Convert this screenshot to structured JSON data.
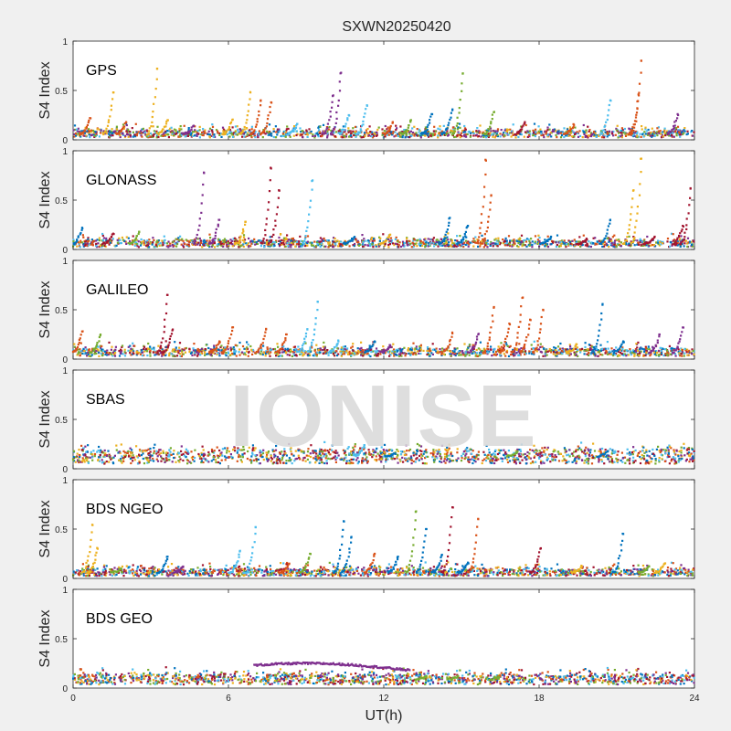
{
  "chart_data": {
    "type": "scatter",
    "title": "SXWN20250420",
    "xlabel": "UT(h)",
    "ylabel": "S4 Index",
    "xlim": [
      0,
      24
    ],
    "ylim": [
      0,
      1
    ],
    "xticks": [
      0,
      6,
      12,
      18,
      24
    ],
    "yticks": [
      0,
      0.5,
      1
    ],
    "ytick_labels": [
      "0",
      "0.5",
      "1"
    ],
    "xtick_labels": [
      "0",
      "6",
      "12",
      "18",
      "24"
    ],
    "grid": false,
    "watermark": "IONISE",
    "colors": [
      "#0072BD",
      "#D95319",
      "#EDB120",
      "#7E2F8E",
      "#77AC30",
      "#4DBEEE",
      "#A2142F"
    ],
    "panels": [
      {
        "label": "GPS",
        "baseline": 0.06,
        "spikes": [
          [
            0.6,
            0.22,
            1
          ],
          [
            1.5,
            0.48,
            2
          ],
          [
            2.0,
            0.18,
            1
          ],
          [
            3.2,
            0.72,
            2
          ],
          [
            3.6,
            0.2,
            2
          ],
          [
            4.6,
            0.14,
            3
          ],
          [
            6.1,
            0.2,
            2
          ],
          [
            6.8,
            0.48,
            2
          ],
          [
            7.2,
            0.4,
            1
          ],
          [
            7.6,
            0.38,
            1
          ],
          [
            8.6,
            0.16,
            5
          ],
          [
            10.0,
            0.45,
            3
          ],
          [
            10.3,
            0.68,
            3
          ],
          [
            10.6,
            0.25,
            5
          ],
          [
            11.3,
            0.35,
            5
          ],
          [
            12.3,
            0.18,
            1
          ],
          [
            13.0,
            0.2,
            4
          ],
          [
            13.8,
            0.26,
            0
          ],
          [
            14.6,
            0.3,
            0
          ],
          [
            15.0,
            0.67,
            4
          ],
          [
            16.2,
            0.28,
            4
          ],
          [
            17.4,
            0.17,
            6
          ],
          [
            19.3,
            0.15,
            1
          ],
          [
            20.7,
            0.4,
            5
          ],
          [
            21.8,
            0.45,
            1
          ],
          [
            21.9,
            0.8,
            1
          ],
          [
            23.3,
            0.26,
            3
          ]
        ]
      },
      {
        "label": "GLONASS",
        "baseline": 0.06,
        "spikes": [
          [
            0.3,
            0.22,
            0
          ],
          [
            1.5,
            0.16,
            6
          ],
          [
            2.5,
            0.18,
            4
          ],
          [
            5.0,
            0.78,
            3
          ],
          [
            5.6,
            0.3,
            3
          ],
          [
            6.6,
            0.28,
            2
          ],
          [
            7.6,
            0.82,
            6
          ],
          [
            7.9,
            0.6,
            6
          ],
          [
            9.2,
            0.7,
            5
          ],
          [
            10.8,
            0.12,
            0
          ],
          [
            12.2,
            0.15,
            2
          ],
          [
            14.5,
            0.32,
            0
          ],
          [
            15.2,
            0.24,
            0
          ],
          [
            15.9,
            0.9,
            1
          ],
          [
            16.1,
            0.55,
            1
          ],
          [
            18.4,
            0.12,
            0
          ],
          [
            19.8,
            0.1,
            6
          ],
          [
            20.7,
            0.3,
            0
          ],
          [
            21.6,
            0.6,
            2
          ],
          [
            21.9,
            0.92,
            2
          ],
          [
            22.4,
            0.12,
            6
          ],
          [
            23.5,
            0.24,
            6
          ],
          [
            23.8,
            0.62,
            6
          ]
        ]
      },
      {
        "label": "GALILEO",
        "baseline": 0.07,
        "spikes": [
          [
            0.3,
            0.28,
            1
          ],
          [
            1.0,
            0.24,
            4
          ],
          [
            3.6,
            0.65,
            6
          ],
          [
            3.8,
            0.3,
            6
          ],
          [
            5.6,
            0.18,
            1
          ],
          [
            6.1,
            0.32,
            1
          ],
          [
            7.4,
            0.3,
            1
          ],
          [
            8.2,
            0.25,
            1
          ],
          [
            9.0,
            0.3,
            5
          ],
          [
            9.4,
            0.58,
            5
          ],
          [
            10.2,
            0.18,
            5
          ],
          [
            11.6,
            0.18,
            0
          ],
          [
            12.2,
            0.14,
            3
          ],
          [
            14.6,
            0.26,
            1
          ],
          [
            15.6,
            0.25,
            3
          ],
          [
            16.2,
            0.52,
            1
          ],
          [
            16.8,
            0.36,
            1
          ],
          [
            17.3,
            0.62,
            1
          ],
          [
            17.6,
            0.4,
            1
          ],
          [
            18.1,
            0.5,
            1
          ],
          [
            19.4,
            0.15,
            2
          ],
          [
            20.4,
            0.55,
            0
          ],
          [
            21.2,
            0.18,
            0
          ],
          [
            22.6,
            0.25,
            3
          ],
          [
            23.5,
            0.32,
            3
          ]
        ]
      },
      {
        "label": "SBAS",
        "baseline": 0.13,
        "spikes": [
          [
            11.2,
            0.24,
            5
          ],
          [
            12.4,
            0.15,
            0
          ],
          [
            17.1,
            0.17,
            4
          ],
          [
            20.6,
            0.18,
            0
          ]
        ]
      },
      {
        "label": "BDS NGEO",
        "baseline": 0.06,
        "spikes": [
          [
            0.7,
            0.54,
            2
          ],
          [
            0.9,
            0.3,
            2
          ],
          [
            1.8,
            0.1,
            4
          ],
          [
            3.6,
            0.22,
            0
          ],
          [
            4.2,
            0.12,
            3
          ],
          [
            6.4,
            0.28,
            5
          ],
          [
            7.0,
            0.52,
            5
          ],
          [
            8.3,
            0.15,
            1
          ],
          [
            9.1,
            0.25,
            4
          ],
          [
            10.4,
            0.58,
            0
          ],
          [
            10.7,
            0.42,
            0
          ],
          [
            11.6,
            0.25,
            1
          ],
          [
            12.5,
            0.22,
            0
          ],
          [
            13.2,
            0.68,
            4
          ],
          [
            13.6,
            0.5,
            0
          ],
          [
            14.2,
            0.24,
            0
          ],
          [
            14.6,
            0.72,
            6
          ],
          [
            15.2,
            0.16,
            0
          ],
          [
            15.6,
            0.6,
            1
          ],
          [
            18.0,
            0.3,
            6
          ],
          [
            19.6,
            0.12,
            2
          ],
          [
            21.2,
            0.45,
            0
          ],
          [
            22.2,
            0.12,
            4
          ],
          [
            22.8,
            0.15,
            2
          ]
        ]
      },
      {
        "label": "BDS GEO",
        "baseline": 0.09,
        "spikes": [
          [
            13.6,
            0.12,
            4
          ],
          [
            14.8,
            0.12,
            4
          ],
          [
            16.4,
            0.11,
            4
          ]
        ],
        "arc": {
          "start": 7.0,
          "end": 13.0,
          "peak": 0.25,
          "color": 3
        }
      }
    ]
  }
}
